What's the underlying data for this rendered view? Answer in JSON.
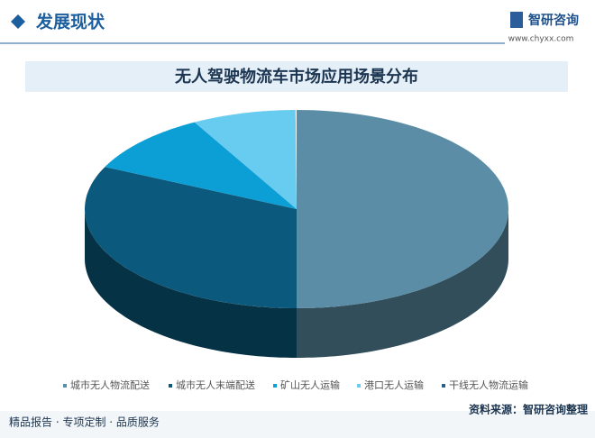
{
  "header": {
    "section": "发展现状",
    "brand": "智研咨询",
    "url": "www.chyxx.com"
  },
  "chart_data": {
    "type": "pie",
    "title": "无人驾驶物流车市场应用场景分布",
    "categories": [
      "城市无人物流配送",
      "城市无人末端配送",
      "矿山无人运输",
      "港口无人运输",
      "干线无人物流运输"
    ],
    "values": [
      50,
      32,
      10,
      8,
      0
    ],
    "colors": [
      "#5b8ea6",
      "#0b5a7d",
      "#0c9fd6",
      "#68cbf0",
      "#2b5f8a"
    ],
    "legend": "bottom"
  },
  "footer": {
    "tagline": "精品报告 · 专项定制 · 品质服务",
    "source": "资料来源：智研咨询整理"
  }
}
